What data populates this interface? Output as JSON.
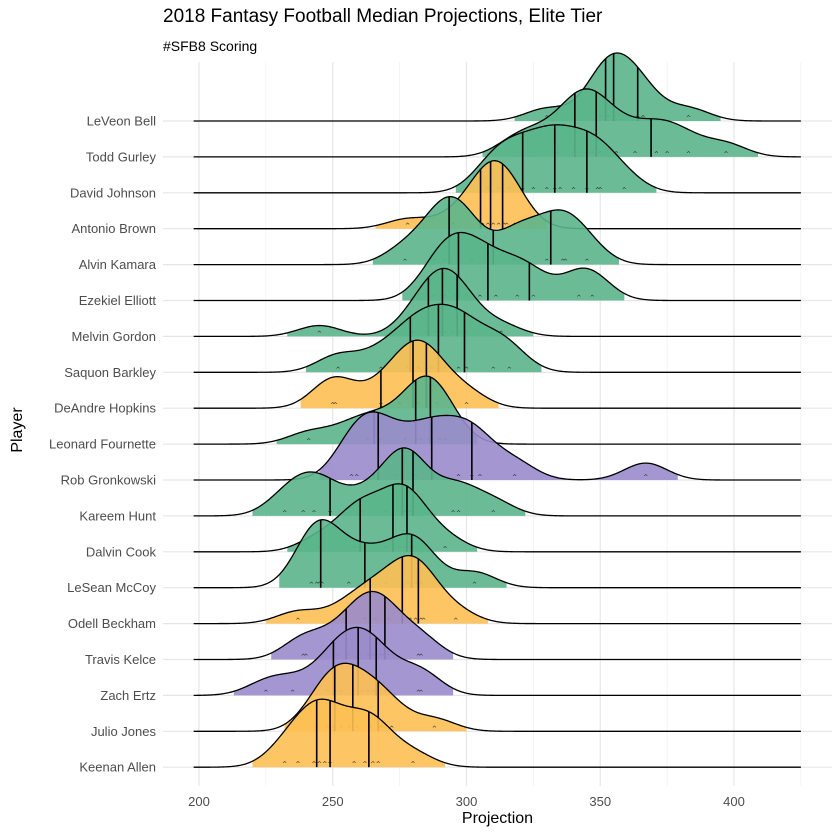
{
  "chart_data": {
    "type": "ridgeline",
    "title": "2018 Fantasy Football Median Projections, Elite Tier",
    "subtitle": "#SFB8 Scoring",
    "xlabel": "Projection",
    "ylabel": "Player",
    "xlim": [
      185,
      425
    ],
    "x_ticks": [
      200,
      250,
      300,
      350,
      400
    ],
    "grid": true,
    "legend": "none",
    "position_colors": {
      "RB": "#5bb58b",
      "WR": "#fdbf53",
      "TE": "#9a8bcb"
    },
    "players": [
      {
        "name": "LeVeon Bell",
        "position": "RB",
        "projections": [
          330,
          350,
          352,
          353,
          355,
          360,
          364,
          366,
          383
        ]
      },
      {
        "name": "Todd Gurley",
        "position": "RB",
        "projections": [
          318,
          325,
          334,
          340,
          342,
          345,
          347,
          350,
          356,
          363,
          371,
          375,
          383,
          397
        ]
      },
      {
        "name": "David Johnson",
        "position": "RB",
        "projections": [
          308,
          312,
          316,
          321,
          325,
          330,
          333,
          335,
          340,
          345,
          349,
          350,
          359
        ]
      },
      {
        "name": "Antonio Brown",
        "position": "WR",
        "projections": [
          278,
          295,
          305,
          306,
          308,
          310,
          312,
          314,
          315,
          318
        ]
      },
      {
        "name": "Alvin Kamara",
        "position": "RB",
        "projections": [
          277,
          288,
          292,
          294,
          297,
          302,
          318,
          320,
          330,
          336,
          337,
          345
        ]
      },
      {
        "name": "Ezekiel Elliott",
        "position": "RB",
        "projections": [
          288,
          292,
          296,
          300,
          305,
          311,
          319,
          325,
          342,
          347
        ]
      },
      {
        "name": "Melvin Gordon",
        "position": "RB",
        "projections": [
          245,
          280,
          285,
          288,
          290,
          292,
          295,
          297,
          300,
          313
        ]
      },
      {
        "name": "Saquon Barkley",
        "position": "RB",
        "projections": [
          252,
          268,
          278,
          282,
          287,
          292,
          297,
          300,
          310,
          316
        ]
      },
      {
        "name": "DeAndre Hopkins",
        "position": "WR",
        "projections": [
          250,
          251,
          268,
          275,
          280,
          282,
          285,
          289,
          300
        ]
      },
      {
        "name": "Leonard Fournette",
        "position": "RB",
        "projections": [
          241,
          255,
          263,
          268,
          277,
          281,
          283,
          286,
          287,
          290,
          292
        ]
      },
      {
        "name": "Rob Gronkowski",
        "position": "TE",
        "projections": [
          257,
          259,
          265,
          267,
          274,
          281,
          287,
          290,
          297,
          302,
          305,
          318,
          367
        ]
      },
      {
        "name": "Kareem Hunt",
        "position": "RB",
        "projections": [
          232,
          239,
          243,
          249,
          261,
          270,
          276,
          277,
          279,
          280,
          295,
          297,
          310
        ]
      },
      {
        "name": "Dalvin Cook",
        "position": "RB",
        "projections": [
          245,
          258,
          260,
          261,
          270,
          275,
          277,
          278,
          280,
          292
        ]
      },
      {
        "name": "LeSean McCoy",
        "position": "RB",
        "projections": [
          242,
          244,
          245,
          246,
          256,
          262,
          270,
          278,
          281,
          283,
          303
        ]
      },
      {
        "name": "Odell Beckham",
        "position": "WR",
        "projections": [
          237,
          254,
          262,
          266,
          271,
          276,
          279,
          281,
          283,
          284,
          296
        ]
      },
      {
        "name": "Travis Kelce",
        "position": "TE",
        "projections": [
          239,
          240,
          252,
          256,
          260,
          263,
          265,
          268,
          269,
          271,
          282,
          283
        ]
      },
      {
        "name": "Zach Ertz",
        "position": "TE",
        "projections": [
          225,
          235,
          248,
          251,
          253,
          258,
          261,
          263,
          265,
          270,
          282,
          283
        ]
      },
      {
        "name": "Julio Jones",
        "position": "WR",
        "projections": [
          244,
          248,
          250,
          253,
          256,
          259,
          264,
          268,
          272,
          288
        ]
      },
      {
        "name": "Keenan Allen",
        "position": "WR",
        "projections": [
          232,
          237,
          243,
          245,
          247,
          249,
          258,
          262,
          265,
          267,
          280
        ]
      }
    ]
  }
}
